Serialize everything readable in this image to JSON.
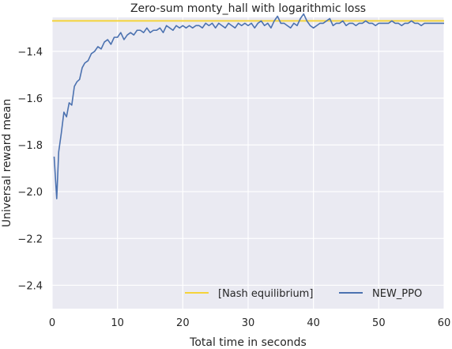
{
  "chart_data": {
    "type": "line",
    "title": "Zero-sum monty_hall with logarithmic loss",
    "xlabel": "Total time in seconds",
    "ylabel": "Universal reward mean",
    "xlim": [
      0,
      60
    ],
    "ylim": [
      -2.5,
      -1.255
    ],
    "xticks": [
      0,
      10,
      20,
      30,
      40,
      50,
      60
    ],
    "xtick_labels": [
      "0",
      "10",
      "20",
      "30",
      "40",
      "50",
      "60"
    ],
    "yticks": [
      -1.4,
      -1.6,
      -1.8,
      -2.0,
      -2.2,
      -2.4
    ],
    "ytick_labels": [
      "−1.4",
      "−1.6",
      "−1.8",
      "−2.0",
      "−2.2",
      "−2.4"
    ],
    "grid": true,
    "legend_position": "lower-right",
    "series": [
      {
        "name": "[Nash equilibrium]",
        "color": "#f5d33a",
        "x": [
          0,
          60
        ],
        "y": [
          -1.27,
          -1.27
        ]
      },
      {
        "name": "NEW_PPO",
        "color": "#4c72b0",
        "x": [
          0.3,
          0.7,
          1.0,
          1.4,
          1.8,
          2.2,
          2.6,
          3.0,
          3.4,
          3.8,
          4.2,
          4.6,
          5.0,
          5.5,
          6.0,
          6.5,
          7.0,
          7.5,
          8.0,
          8.5,
          9.0,
          9.5,
          10.0,
          10.5,
          11.0,
          11.5,
          12.0,
          12.5,
          13.0,
          13.5,
          14.0,
          14.5,
          15.0,
          15.5,
          16.0,
          16.5,
          17.0,
          17.5,
          18.0,
          18.5,
          19.0,
          19.5,
          20.0,
          20.5,
          21.0,
          21.5,
          22.0,
          22.5,
          23.0,
          23.5,
          24.0,
          24.5,
          25.0,
          25.5,
          26.0,
          26.5,
          27.0,
          27.5,
          28.0,
          28.5,
          29.0,
          29.5,
          30.0,
          30.5,
          31.0,
          31.5,
          32.0,
          32.5,
          33.0,
          33.5,
          34.0,
          34.5,
          35.0,
          35.5,
          36.0,
          36.5,
          37.0,
          37.5,
          38.0,
          38.5,
          39.0,
          39.5,
          40.0,
          40.5,
          41.0,
          41.5,
          42.0,
          42.5,
          43.0,
          43.5,
          44.0,
          44.5,
          45.0,
          45.5,
          46.0,
          46.5,
          47.0,
          47.5,
          48.0,
          48.5,
          49.0,
          49.5,
          50.0,
          50.5,
          51.0,
          51.5,
          52.0,
          52.5,
          53.0,
          53.5,
          54.0,
          54.5,
          55.0,
          55.5,
          56.0,
          56.5,
          57.0,
          57.5,
          58.0,
          58.5,
          59.0,
          59.5,
          60.0
        ],
        "y": [
          -1.85,
          -2.03,
          -1.83,
          -1.75,
          -1.66,
          -1.68,
          -1.62,
          -1.63,
          -1.55,
          -1.53,
          -1.52,
          -1.47,
          -1.45,
          -1.44,
          -1.41,
          -1.4,
          -1.38,
          -1.39,
          -1.36,
          -1.35,
          -1.37,
          -1.34,
          -1.34,
          -1.32,
          -1.35,
          -1.33,
          -1.32,
          -1.33,
          -1.31,
          -1.31,
          -1.32,
          -1.3,
          -1.32,
          -1.31,
          -1.31,
          -1.3,
          -1.32,
          -1.29,
          -1.3,
          -1.31,
          -1.29,
          -1.3,
          -1.29,
          -1.3,
          -1.29,
          -1.3,
          -1.29,
          -1.29,
          -1.3,
          -1.28,
          -1.29,
          -1.28,
          -1.3,
          -1.28,
          -1.29,
          -1.3,
          -1.28,
          -1.29,
          -1.3,
          -1.28,
          -1.29,
          -1.28,
          -1.29,
          -1.28,
          -1.3,
          -1.28,
          -1.27,
          -1.29,
          -1.28,
          -1.3,
          -1.27,
          -1.25,
          -1.28,
          -1.28,
          -1.29,
          -1.3,
          -1.28,
          -1.29,
          -1.26,
          -1.24,
          -1.27,
          -1.29,
          -1.3,
          -1.29,
          -1.28,
          -1.28,
          -1.27,
          -1.26,
          -1.29,
          -1.28,
          -1.28,
          -1.27,
          -1.29,
          -1.28,
          -1.28,
          -1.29,
          -1.28,
          -1.28,
          -1.27,
          -1.28,
          -1.28,
          -1.29,
          -1.28,
          -1.28,
          -1.28,
          -1.28,
          -1.27,
          -1.28,
          -1.28,
          -1.29,
          -1.28,
          -1.28,
          -1.27,
          -1.28,
          -1.28,
          -1.29,
          -1.28,
          -1.28,
          -1.28,
          -1.28,
          -1.28,
          -1.28,
          -1.28
        ]
      }
    ]
  }
}
